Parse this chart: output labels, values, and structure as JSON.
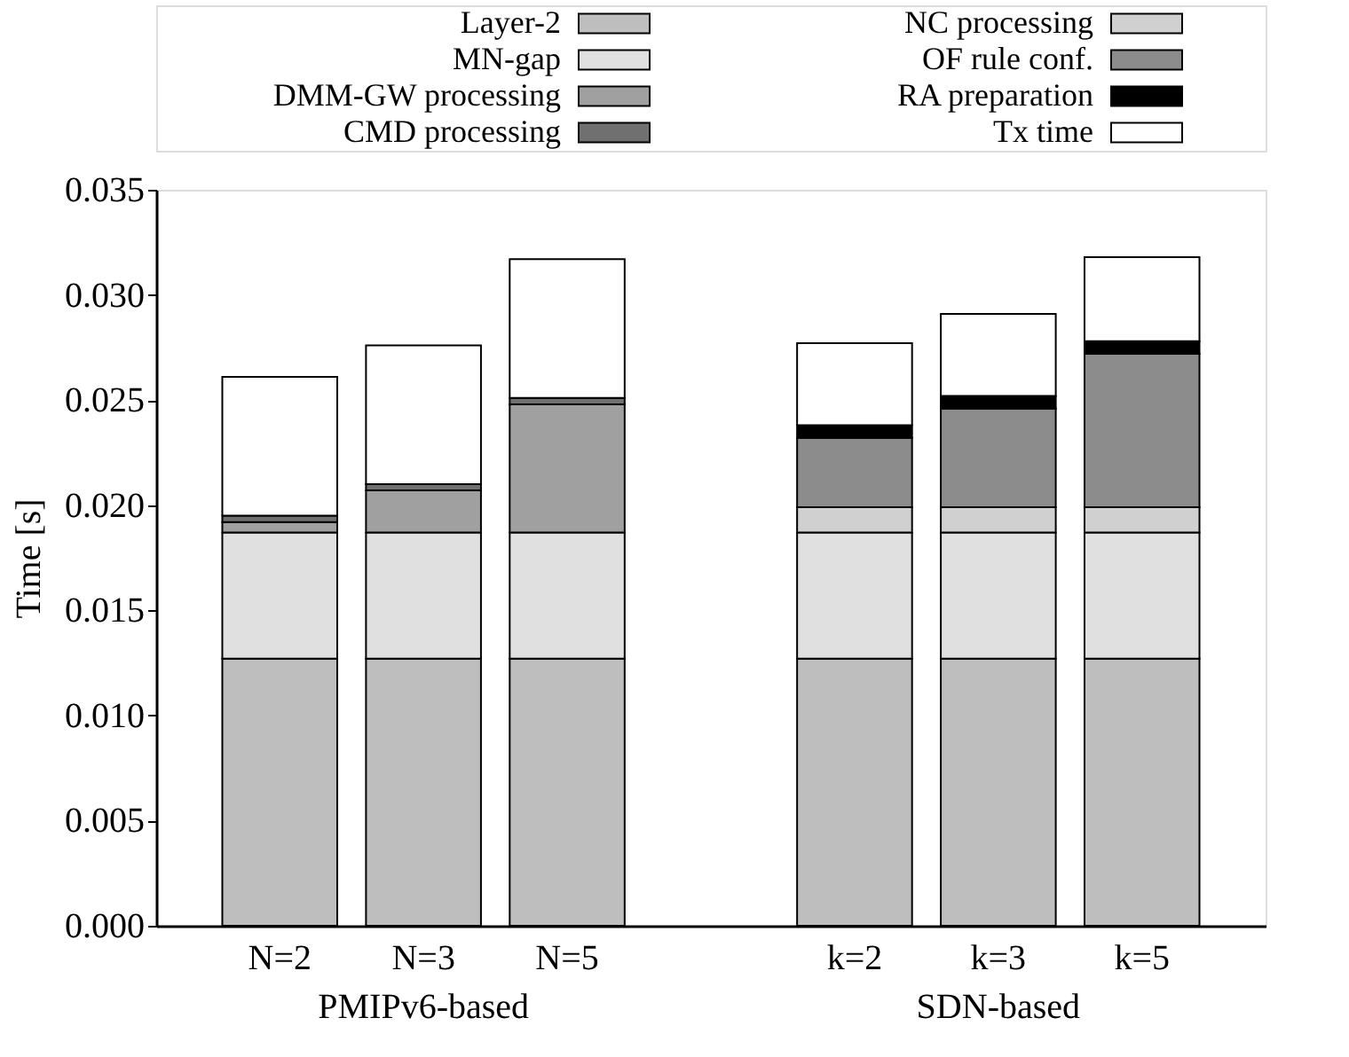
{
  "chart_data": {
    "type": "bar",
    "stacked": true,
    "ylabel": "Time [s]",
    "legend": "top",
    "categories": [
      "N=2",
      "N=3",
      "N=5",
      null,
      "k=2",
      "k=3",
      "k=5"
    ],
    "ylim": [
      0,
      0.035
    ],
    "yticks": [
      {
        "value": 0,
        "label": "0.000"
      },
      {
        "value": 0.005,
        "label": "0.005"
      },
      {
        "value": 0.01,
        "label": "0.010"
      },
      {
        "value": 0.015,
        "label": "0.015"
      },
      {
        "value": 0.02,
        "label": "0.020"
      },
      {
        "value": 0.025,
        "label": "0.025"
      },
      {
        "value": 0.03,
        "label": "0.030"
      },
      {
        "value": 0.035,
        "label": "0.035"
      }
    ],
    "series": [
      {
        "name": "Layer-2",
        "color": "#bebebe",
        "values": [
          0.0127,
          0.0127,
          0.0127,
          null,
          0.0127,
          0.0127,
          0.0127
        ]
      },
      {
        "name": "MN-gap",
        "color": "#e0e0e0",
        "values": [
          0.006,
          0.006,
          0.006,
          null,
          0.006,
          0.006,
          0.006
        ]
      },
      {
        "name": "DMM-GW processing",
        "color": "#a0a0a0",
        "values": [
          0.0005,
          0.002,
          0.0061,
          null,
          null,
          null,
          null
        ]
      },
      {
        "name": "CMD processing",
        "color": "#707070",
        "values": [
          0.0003,
          0.0003,
          0.0003,
          null,
          null,
          null,
          null
        ]
      },
      {
        "name": "NC processing",
        "color": "#d0d0d0",
        "values": [
          null,
          null,
          null,
          null,
          0.0012,
          0.0012,
          0.0012
        ]
      },
      {
        "name": "OF rule conf.",
        "color": "#8c8c8c",
        "values": [
          null,
          null,
          null,
          null,
          0.0033,
          0.0047,
          0.0073
        ]
      },
      {
        "name": "RA preparation",
        "color": "#000000",
        "values": [
          null,
          null,
          null,
          null,
          0.0006,
          0.0006,
          0.0006
        ]
      },
      {
        "name": "Tx time",
        "color": "#ffffff",
        "values": [
          0.0066,
          0.0066,
          0.0066,
          null,
          0.0039,
          0.0039,
          0.004
        ]
      }
    ],
    "annotations": [
      "PMIPv6-based",
      "SDN-based"
    ]
  }
}
